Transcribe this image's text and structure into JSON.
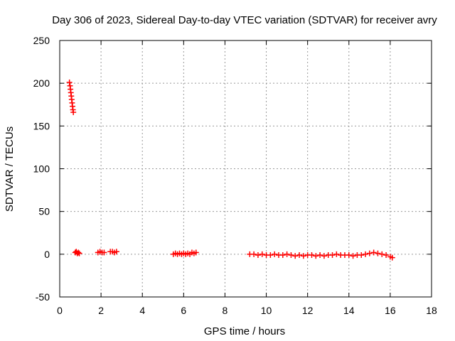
{
  "chart_data": {
    "type": "scatter",
    "title": "Day 306 of 2023, Sidereal Day-to-day VTEC variation (SDTVAR) for receiver avry",
    "xlabel": "GPS time / hours",
    "ylabel": "SDTVAR / TECUs",
    "xlim": [
      0,
      18
    ],
    "ylim": [
      -50,
      250
    ],
    "xticks": [
      0,
      2,
      4,
      6,
      8,
      10,
      12,
      14,
      16,
      18
    ],
    "yticks": [
      -50,
      0,
      50,
      100,
      150,
      200,
      250
    ],
    "grid": true,
    "marker": "+",
    "colors": {
      "series": "#ff0000",
      "grid": "#999999",
      "axis": "#000000"
    },
    "series": [
      {
        "name": "SDTVAR",
        "points": [
          [
            0.47,
            201
          ],
          [
            0.5,
            197
          ],
          [
            0.52,
            193
          ],
          [
            0.54,
            189
          ],
          [
            0.56,
            185
          ],
          [
            0.58,
            181
          ],
          [
            0.6,
            177
          ],
          [
            0.62,
            173
          ],
          [
            0.64,
            169
          ],
          [
            0.66,
            166
          ],
          [
            0.75,
            2
          ],
          [
            0.8,
            3
          ],
          [
            0.85,
            1
          ],
          [
            0.9,
            2
          ],
          [
            0.95,
            1
          ],
          [
            1.85,
            2
          ],
          [
            1.95,
            3
          ],
          [
            2.05,
            2
          ],
          [
            2.15,
            2
          ],
          [
            2.45,
            3
          ],
          [
            2.55,
            3
          ],
          [
            2.65,
            2
          ],
          [
            2.75,
            3
          ],
          [
            5.5,
            0
          ],
          [
            5.6,
            1
          ],
          [
            5.7,
            0
          ],
          [
            5.8,
            1
          ],
          [
            5.9,
            0
          ],
          [
            6.0,
            1
          ],
          [
            6.1,
            0
          ],
          [
            6.2,
            1
          ],
          [
            6.3,
            0
          ],
          [
            6.4,
            2
          ],
          [
            6.5,
            1
          ],
          [
            6.6,
            2
          ],
          [
            9.2,
            0
          ],
          [
            9.4,
            0
          ],
          [
            9.6,
            -1
          ],
          [
            9.8,
            0
          ],
          [
            10.0,
            -1
          ],
          [
            10.2,
            -1
          ],
          [
            10.4,
            0
          ],
          [
            10.6,
            -1
          ],
          [
            10.8,
            -1
          ],
          [
            11.0,
            0
          ],
          [
            11.2,
            -1
          ],
          [
            11.4,
            -2
          ],
          [
            11.6,
            -1
          ],
          [
            11.8,
            -2
          ],
          [
            12.0,
            -1
          ],
          [
            12.2,
            -1
          ],
          [
            12.4,
            -2
          ],
          [
            12.6,
            -1
          ],
          [
            12.8,
            -2
          ],
          [
            13.0,
            -1
          ],
          [
            13.2,
            -1
          ],
          [
            13.4,
            0
          ],
          [
            13.6,
            -1
          ],
          [
            13.8,
            -1
          ],
          [
            14.0,
            -1
          ],
          [
            14.2,
            -2
          ],
          [
            14.4,
            -1
          ],
          [
            14.6,
            -1
          ],
          [
            14.8,
            0
          ],
          [
            15.0,
            1
          ],
          [
            15.2,
            2
          ],
          [
            15.4,
            1
          ],
          [
            15.6,
            0
          ],
          [
            15.8,
            -1
          ],
          [
            16.0,
            -3
          ],
          [
            16.1,
            -4
          ]
        ]
      }
    ]
  }
}
